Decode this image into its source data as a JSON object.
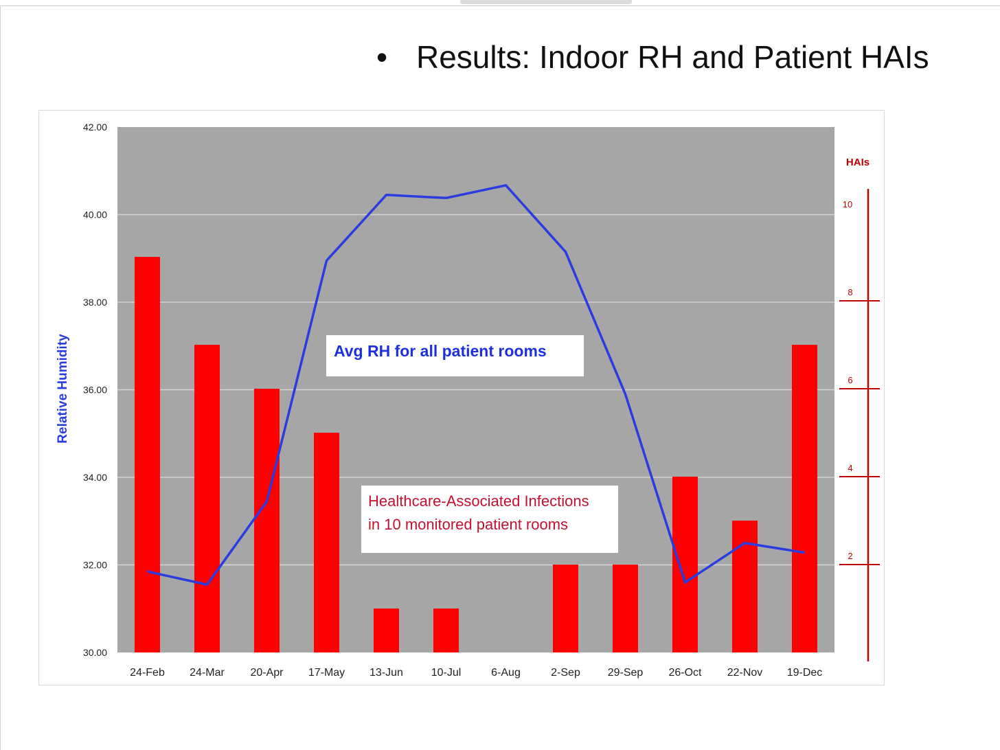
{
  "slide": {
    "bullet": "•",
    "title": "Results: Indoor RH and Patient HAIs"
  },
  "colors": {
    "plot_background": "#a6a6a6",
    "bar": "#ff0000",
    "line": "#2a3ce0",
    "right_axis": "#c00000"
  },
  "chart_data": {
    "type": "bar",
    "categories": [
      "24-Feb",
      "24-Mar",
      "20-Apr",
      "17-May",
      "13-Jun",
      "10-Jul",
      "6-Aug",
      "2-Sep",
      "29-Sep",
      "26-Oct",
      "22-Nov",
      "19-Dec"
    ],
    "y_left": {
      "label": "Relative Humidity",
      "lim": [
        30,
        42
      ],
      "ticks": [
        "30.00",
        "32.00",
        "34.00",
        "36.00",
        "38.00",
        "40.00",
        "42.00"
      ]
    },
    "y_right": {
      "label": "HAIs",
      "ticks": [
        "2",
        "4",
        "6",
        "8",
        "10"
      ]
    },
    "series": [
      {
        "name": "Healthcare-Associated Infections in 10 monitored patient rooms",
        "type": "bar",
        "axis": "right",
        "values": [
          9,
          7,
          6,
          5,
          1,
          1,
          0,
          2,
          2,
          4,
          3,
          7
        ]
      },
      {
        "name": "Avg RH for all patient rooms",
        "type": "line",
        "axis": "left",
        "values": [
          31.85,
          31.55,
          33.45,
          38.95,
          40.45,
          40.38,
          40.67,
          39.15,
          35.9,
          31.6,
          32.5,
          32.28
        ]
      }
    ],
    "annotations": {
      "line_label": "Avg RH for all patient rooms",
      "bar_label_line1": "Healthcare-Associated Infections",
      "bar_label_line2": "in 10 monitored  patient rooms"
    },
    "grid": true
  }
}
